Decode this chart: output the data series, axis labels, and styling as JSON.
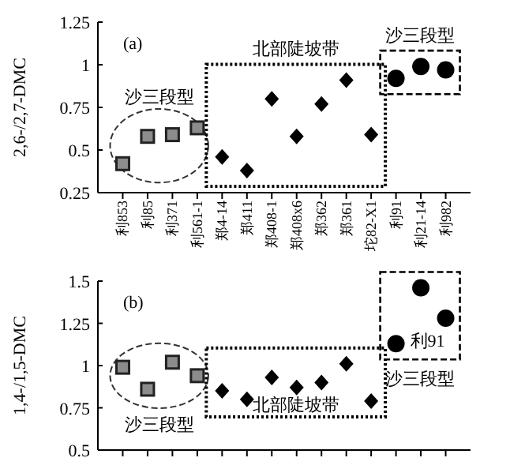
{
  "chart_data": [
    {
      "type": "scatter",
      "title": "(a)",
      "ylabel": "2,6-/2,7-DMC",
      "categories": [
        "利853",
        "利85",
        "利371",
        "利561-1",
        "郑4-14",
        "郑411",
        "郑408-1",
        "郑408x6",
        "郑362",
        "郑361",
        "坨82-X1",
        "利91",
        "利21-14",
        "利982"
      ],
      "ylim": [
        0.25,
        1.25
      ],
      "yticks": [
        0.25,
        0.5,
        0.75,
        1,
        1.25
      ],
      "grid": false,
      "series": [
        {
          "color": "#8c8c8c",
          "marker": "square",
          "values": [
            0.42,
            0.58,
            0.59,
            0.63,
            null,
            null,
            null,
            null,
            null,
            null,
            null,
            null,
            null,
            null
          ]
        },
        {
          "color": "#000000",
          "marker": "diamond",
          "values": [
            null,
            null,
            null,
            null,
            0.46,
            0.38,
            0.8,
            0.58,
            0.77,
            0.91,
            0.59,
            null,
            null,
            null
          ]
        },
        {
          "color": "#000000",
          "marker": "circle",
          "values": [
            null,
            null,
            null,
            null,
            null,
            null,
            null,
            null,
            null,
            null,
            null,
            0.92,
            0.99,
            0.97
          ]
        }
      ],
      "annotations": [
        "沙三段型",
        "北部陡坡带",
        "沙三段型"
      ]
    },
    {
      "type": "scatter",
      "title": "(b)",
      "ylabel": "1,4-/1,5-DMC",
      "categories": [
        "利853",
        "利85",
        "利371",
        "利561-1",
        "郑4-14",
        "郑411",
        "郑408-1",
        "郑408x6",
        "郑362",
        "郑361",
        "坨82-X1",
        "利91",
        "利21-14",
        "利982"
      ],
      "ylim": [
        0.5,
        1.5
      ],
      "yticks": [
        0.5,
        0.75,
        1,
        1.25,
        1.5
      ],
      "grid": false,
      "tick_labels": "y",
      "series": [
        {
          "color": "#8c8c8c",
          "marker": "square",
          "values": [
            0.99,
            0.86,
            1.02,
            0.94,
            null,
            null,
            null,
            null,
            null,
            null,
            null,
            null,
            null,
            null
          ]
        },
        {
          "color": "#000000",
          "marker": "diamond",
          "values": [
            null,
            null,
            null,
            null,
            0.85,
            0.8,
            0.93,
            0.87,
            0.9,
            1.01,
            0.79,
            null,
            null,
            null
          ]
        },
        {
          "color": "#000000",
          "marker": "circle",
          "values": [
            null,
            null,
            null,
            null,
            null,
            null,
            null,
            null,
            null,
            null,
            null,
            1.13,
            1.46,
            1.28
          ]
        }
      ],
      "annotations": [
        "沙三段型",
        "北部陡坡带",
        "沙三段型",
        {
          "text": "利91",
          "x": "利91",
          "y": 1.13
        }
      ]
    }
  ]
}
